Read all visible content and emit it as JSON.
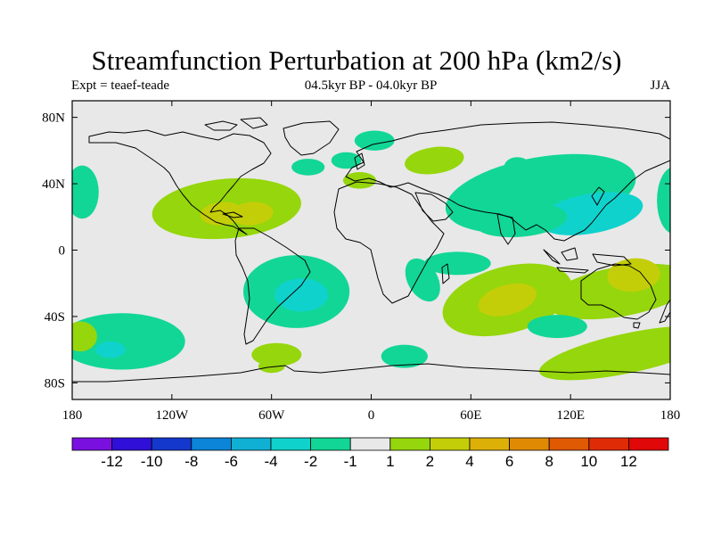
{
  "chart_data": {
    "type": "heatmap",
    "title": "Streamfunction Perturbation at 200 hPa (km2/s)",
    "left_subtitle": "Expt = teaef-teade",
    "center_subtitle": "04.5kyr BP - 04.0kyr BP",
    "right_subtitle": "JJA",
    "x_ticks": [
      "180",
      "120W",
      "60W",
      "0",
      "60E",
      "120E",
      "180"
    ],
    "x_tick_values": [
      -180,
      -120,
      -60,
      0,
      60,
      120,
      180
    ],
    "y_ticks": [
      "80N",
      "40N",
      "0",
      "40S",
      "80S"
    ],
    "y_tick_values": [
      80,
      40,
      0,
      -40,
      -80
    ],
    "lon_range": [
      -180,
      180
    ],
    "lat_range": [
      -90,
      90
    ],
    "colorbar": {
      "labels": [
        "-12",
        "-10",
        "-8",
        "-6",
        "-4",
        "-2",
        "-1",
        "1",
        "2",
        "4",
        "6",
        "8",
        "10",
        "12"
      ],
      "colors": [
        "#7a10e0",
        "#3010d8",
        "#1438cc",
        "#0c84d8",
        "#10b0d4",
        "#10d2cc",
        "#12d696",
        "#e8e8e8",
        "#96d60c",
        "#c4ce08",
        "#dcb006",
        "#e08a04",
        "#e05a04",
        "#e02c06",
        "#e00808"
      ]
    },
    "anomaly_regions": [
      {
        "lon": 102,
        "lat": 34,
        "rlon": 58,
        "rlat": 22,
        "rot": -10,
        "level": -1,
        "color": "#12d696"
      },
      {
        "lon": 132,
        "lat": 22,
        "rlon": 32,
        "rlat": 12,
        "rot": -10,
        "level": -2,
        "color": "#10d2cc"
      },
      {
        "lon": 90,
        "lat": 18,
        "rlon": 28,
        "rlat": 10,
        "rot": -5,
        "level": -1,
        "color": "#12d696"
      },
      {
        "lon": 182,
        "lat": 30,
        "rlon": 10,
        "rlat": 20,
        "rot": 0,
        "level": -1,
        "color": "#12d696"
      },
      {
        "lon": -174,
        "lat": 35,
        "rlon": 10,
        "rlat": 16,
        "rot": 0,
        "level": -1,
        "color": "#12d696"
      },
      {
        "lon": -87,
        "lat": 25,
        "rlon": 45,
        "rlat": 18,
        "rot": -5,
        "level": 1,
        "color": "#96d60c"
      },
      {
        "lon": -90,
        "lat": 22,
        "rlon": 13,
        "rlat": 7,
        "rot": -5,
        "level": 2,
        "color": "#c4ce08"
      },
      {
        "lon": -72,
        "lat": 22,
        "rlon": 13,
        "rlat": 7,
        "rot": -5,
        "level": 2,
        "color": "#c4ce08"
      },
      {
        "lon": -45,
        "lat": -25,
        "rlon": 32,
        "rlat": 22,
        "rot": 0,
        "level": -1,
        "color": "#12d696"
      },
      {
        "lon": -42,
        "lat": -27,
        "rlon": 16,
        "rlat": 10,
        "rot": 0,
        "level": -2,
        "color": "#10d2cc"
      },
      {
        "lon": 2,
        "lat": 66,
        "rlon": 12,
        "rlat": 6,
        "rot": 0,
        "level": -1,
        "color": "#12d696"
      },
      {
        "lon": 38,
        "lat": 54,
        "rlon": 18,
        "rlat": 8,
        "rot": -8,
        "level": 1,
        "color": "#96d60c"
      },
      {
        "lon": -15,
        "lat": 54,
        "rlon": 9,
        "rlat": 5,
        "rot": 0,
        "level": -1,
        "color": "#12d696"
      },
      {
        "lon": -7,
        "lat": 42,
        "rlon": 10,
        "rlat": 5,
        "rot": 0,
        "level": 1,
        "color": "#96d60c"
      },
      {
        "lon": 31,
        "lat": -18,
        "rlon": 9,
        "rlat": 14,
        "rot": -30,
        "level": -1,
        "color": "#12d696"
      },
      {
        "lon": 52,
        "lat": -8,
        "rlon": 20,
        "rlat": 7,
        "rot": 0,
        "level": -1,
        "color": "#12d696"
      },
      {
        "lon": 82,
        "lat": -30,
        "rlon": 40,
        "rlat": 20,
        "rot": -15,
        "level": 1,
        "color": "#96d60c"
      },
      {
        "lon": 82,
        "lat": -30,
        "rlon": 18,
        "rlat": 9,
        "rot": -15,
        "level": 2,
        "color": "#c4ce08"
      },
      {
        "lon": 150,
        "lat": -25,
        "rlon": 45,
        "rlat": 15,
        "rot": -10,
        "level": 1,
        "color": "#96d60c"
      },
      {
        "lon": 158,
        "lat": -15,
        "rlon": 16,
        "rlat": 10,
        "rot": -5,
        "level": 2,
        "color": "#c4ce08"
      },
      {
        "lon": 112,
        "lat": -46,
        "rlon": 18,
        "rlat": 7,
        "rot": 0,
        "level": -1,
        "color": "#12d696"
      },
      {
        "lon": 155,
        "lat": -62,
        "rlon": 55,
        "rlat": 12,
        "rot": -12,
        "level": 1,
        "color": "#96d60c"
      },
      {
        "lon": -150,
        "lat": -55,
        "rlon": 38,
        "rlat": 17,
        "rot": 0,
        "level": -1,
        "color": "#12d696"
      },
      {
        "lon": -157,
        "lat": -60,
        "rlon": 9,
        "rlat": 5,
        "rot": 0,
        "level": -2,
        "color": "#10d2cc"
      },
      {
        "lon": -175,
        "lat": -52,
        "rlon": 10,
        "rlat": 9,
        "rot": 0,
        "level": 1,
        "color": "#96d60c"
      },
      {
        "lon": -57,
        "lat": -63,
        "rlon": 15,
        "rlat": 7,
        "rot": 0,
        "level": 1,
        "color": "#96d60c"
      },
      {
        "lon": 20,
        "lat": -64,
        "rlon": 14,
        "rlat": 7,
        "rot": 0,
        "level": -1,
        "color": "#12d696"
      },
      {
        "lon": -38,
        "lat": 50,
        "rlon": 10,
        "rlat": 5,
        "rot": 0,
        "level": -1,
        "color": "#12d696"
      },
      {
        "lon": 88,
        "lat": 50,
        "rlon": 8,
        "rlat": 6,
        "rot": 0,
        "level": -1,
        "color": "#12d696"
      },
      {
        "lon": -60,
        "lat": -70,
        "rlon": 8,
        "rlat": 4,
        "rot": 0,
        "level": 1,
        "color": "#96d60c"
      }
    ]
  }
}
